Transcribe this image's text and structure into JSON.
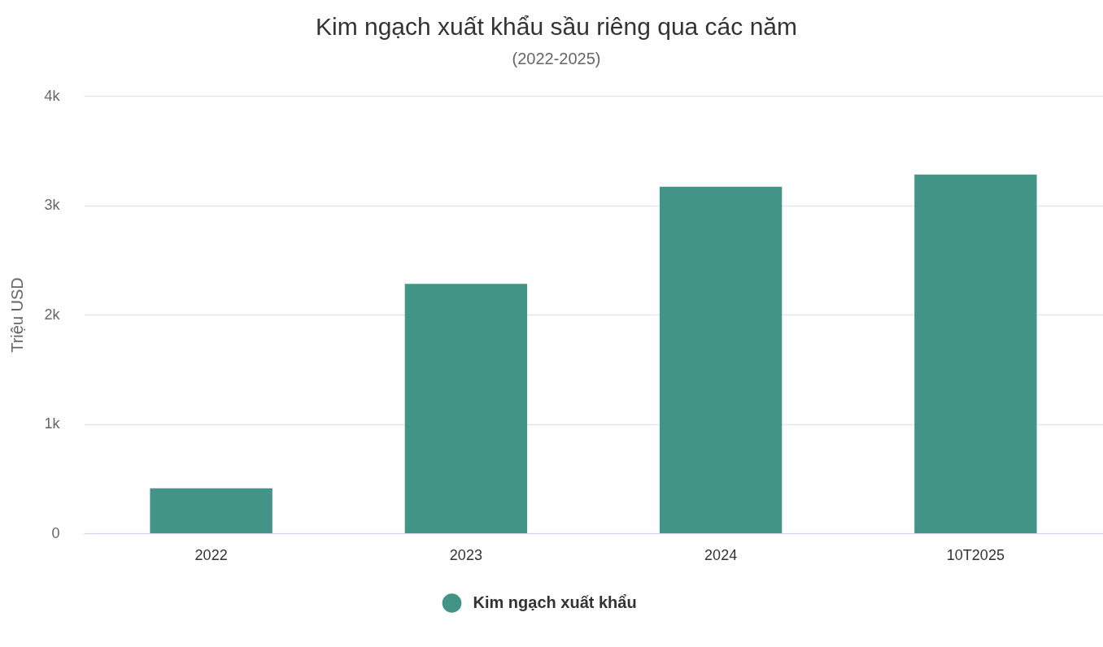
{
  "chart_data": {
    "type": "bar",
    "title": "Kim ngạch xuất khẩu sầu riêng qua các năm",
    "subtitle": "(2022-2025)",
    "ylabel": "Triệu USD",
    "categories": [
      "2022",
      "2023",
      "2024",
      "10T2025"
    ],
    "series": [
      {
        "name": "Kim ngạch xuất khẩu",
        "color": "#419486",
        "values": [
          410,
          2280,
          3170,
          3280
        ]
      }
    ],
    "ylim": [
      0,
      4000
    ],
    "yticks": [
      0,
      {
        "value": 1000,
        "label": "1k"
      },
      {
        "value": 2000,
        "label": "2k"
      },
      {
        "value": 3000,
        "label": "3k"
      },
      {
        "value": 4000,
        "label": "4k"
      }
    ],
    "grid": "y",
    "legend": "bottom"
  }
}
